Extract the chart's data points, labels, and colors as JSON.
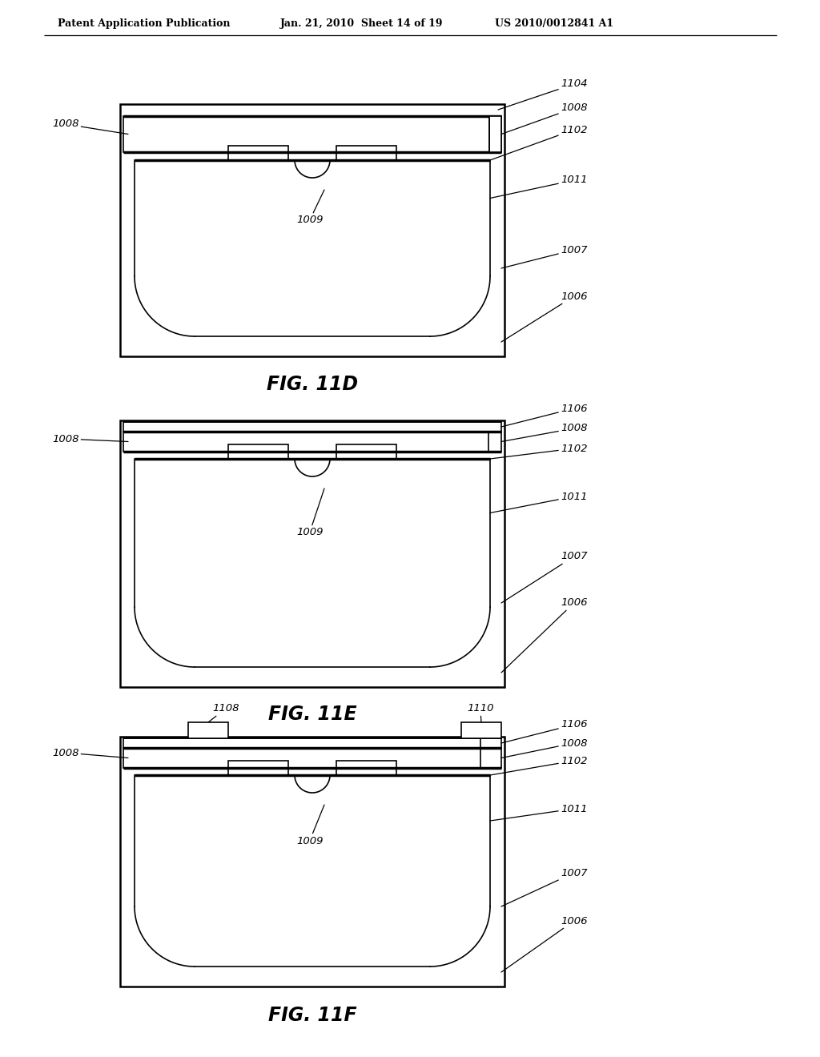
{
  "bg_color": "#ffffff",
  "line_color": "#000000",
  "header_text": "Patent Application Publication",
  "header_date": "Jan. 21, 2010  Sheet 14 of 19",
  "header_patent": "US 2010/0012841 A1"
}
